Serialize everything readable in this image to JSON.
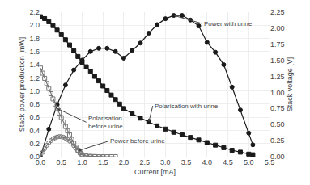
{
  "chart_data": {
    "type": "line",
    "xlabel": "Current [mA]",
    "ylabel": "Stack power production [mW]",
    "y2label": "Stack voltage [V]",
    "xlim": [
      0,
      5.5
    ],
    "ylim": [
      0,
      2.2
    ],
    "y2lim": [
      0,
      2.25
    ],
    "xticks": [
      {
        "value": 0.0,
        "label": "0.0"
      },
      0.5,
      {
        "value": 1.0,
        "label": "1.0"
      },
      1.5,
      {
        "value": 2.0,
        "label": "2.0"
      },
      2.5,
      {
        "value": 3.0,
        "label": "3.0"
      },
      3.5,
      {
        "value": 4.0,
        "label": "4.0"
      },
      4.5,
      {
        "value": 5.0,
        "label": "5.0"
      },
      5.5
    ],
    "yticks": [
      {
        "value": 0.0,
        "label": "0.0"
      },
      0.2,
      0.4,
      0.6,
      0.8,
      {
        "value": 1.0,
        "label": "1.0"
      },
      1.2,
      1.4,
      1.6,
      1.8,
      {
        "value": 2.0,
        "label": "2.0"
      },
      2.2
    ],
    "y2ticks": [
      {
        "value": 0.0,
        "label": "0.00"
      },
      0.25,
      {
        "value": 0.5,
        "label": "0.50"
      },
      0.75,
      {
        "value": 1.0,
        "label": "1.00"
      },
      1.25,
      {
        "value": 1.5,
        "label": "1.50"
      },
      1.75,
      {
        "value": 2.0,
        "label": "2.00"
      },
      2.25
    ],
    "grid": true,
    "series": [
      {
        "color": "#1a1a1a",
        "marker": "square",
        "axis": "y2",
        "x": [
          0.0,
          0.1,
          0.2,
          0.3,
          0.4,
          0.5,
          0.6,
          0.7,
          0.8,
          0.9,
          1.0,
          1.1,
          1.2,
          1.3,
          1.4,
          1.5,
          1.6,
          1.7,
          1.8,
          1.9,
          2.0,
          2.2,
          2.4,
          2.6,
          2.8,
          3.0,
          3.2,
          3.4,
          3.6,
          3.8,
          4.0,
          4.2,
          4.4,
          4.6,
          4.8,
          5.0,
          5.1
        ],
        "values": [
          2.18,
          2.15,
          2.1,
          2.04,
          1.97,
          1.9,
          1.82,
          1.74,
          1.65,
          1.56,
          1.47,
          1.4,
          1.33,
          1.25,
          1.18,
          1.1,
          1.03,
          0.96,
          0.89,
          0.82,
          0.75,
          0.67,
          0.6,
          0.54,
          0.48,
          0.43,
          0.38,
          0.34,
          0.3,
          0.26,
          0.22,
          0.18,
          0.14,
          0.1,
          0.07,
          0.04,
          0.03
        ]
      },
      {
        "color": "#777777",
        "marker": "square-open",
        "axis": "y2",
        "x": [
          0.0,
          0.05,
          0.1,
          0.15,
          0.2,
          0.25,
          0.3,
          0.35,
          0.4,
          0.45,
          0.5,
          0.55,
          0.6,
          0.65,
          0.7,
          0.75,
          0.8,
          0.85,
          0.9,
          0.95,
          1.0,
          1.1,
          1.2,
          1.3,
          1.4,
          1.5,
          1.6,
          1.7,
          1.8
        ],
        "values": [
          1.38,
          1.3,
          1.22,
          1.14,
          1.06,
          0.98,
          0.9,
          0.82,
          0.75,
          0.68,
          0.61,
          0.54,
          0.47,
          0.4,
          0.34,
          0.27,
          0.21,
          0.15,
          0.1,
          0.06,
          0.03,
          0.01,
          0.005,
          0.002,
          0.0,
          0.0,
          0.0,
          0.0,
          0.0
        ]
      },
      {
        "color": "#1a1a1a",
        "marker": "circle",
        "x": [
          0.0,
          0.2,
          0.4,
          0.6,
          0.8,
          1.0,
          1.2,
          1.4,
          1.6,
          1.8,
          2.0,
          2.2,
          2.4,
          2.6,
          2.8,
          3.0,
          3.2,
          3.4,
          3.6,
          3.8,
          4.0,
          4.2,
          4.4,
          4.6,
          4.8,
          5.0,
          5.1
        ],
        "values": [
          0.0,
          0.42,
          0.79,
          1.09,
          1.32,
          1.47,
          1.6,
          1.65,
          1.65,
          1.6,
          1.5,
          1.62,
          1.73,
          1.88,
          2.01,
          2.1,
          2.15,
          2.15,
          2.08,
          1.99,
          1.74,
          1.59,
          1.4,
          1.06,
          0.71,
          0.36,
          0.18
        ]
      },
      {
        "color": "#777777",
        "marker": "circle-open",
        "x": [
          0.0,
          0.05,
          0.1,
          0.15,
          0.2,
          0.25,
          0.3,
          0.35,
          0.4,
          0.45,
          0.5,
          0.55,
          0.6,
          0.65,
          0.7,
          0.75,
          0.8,
          0.85,
          0.9,
          0.95,
          1.0,
          1.1,
          1.2,
          1.3,
          1.4,
          1.5
        ],
        "values": [
          0.0,
          0.065,
          0.122,
          0.171,
          0.212,
          0.245,
          0.27,
          0.287,
          0.3,
          0.306,
          0.305,
          0.297,
          0.282,
          0.26,
          0.238,
          0.203,
          0.168,
          0.128,
          0.09,
          0.057,
          0.03,
          0.011,
          0.006,
          0.003,
          0.0,
          0.0
        ]
      }
    ],
    "annotations": [
      {
        "text": "Power with urine",
        "x": 3.2,
        "y": 2.15
      },
      {
        "text": "Polarisation with urine",
        "x": 2.6,
        "y": 0.54,
        "axis": "y2"
      },
      {
        "text": "Power before urine",
        "x": 0.9,
        "y": 0.09
      },
      {
        "text": "Polarisation\nbefore urine",
        "x": 0.4,
        "y": 0.75,
        "axis": "y2"
      }
    ]
  }
}
